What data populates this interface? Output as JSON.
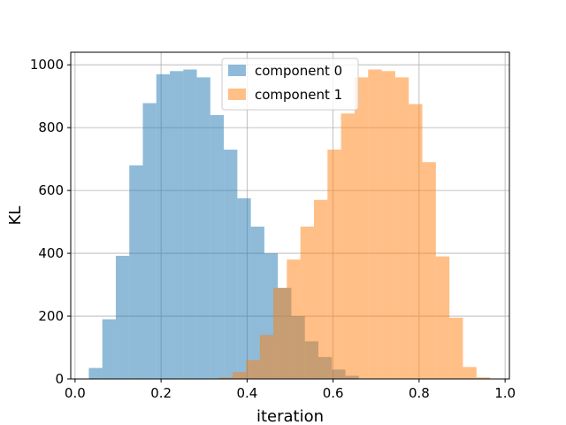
{
  "chart_data": {
    "type": "bar",
    "xlabel": "iteration",
    "ylabel": "KL",
    "xlim": [
      -0.01,
      1.01
    ],
    "ylim": [
      0,
      1040
    ],
    "xticks": [
      "0.0",
      "0.2",
      "0.4",
      "0.6",
      "0.8",
      "1.0"
    ],
    "xtick_values": [
      0.0,
      0.2,
      0.4,
      0.6,
      0.8,
      1.0
    ],
    "yticks": [
      "0",
      "200",
      "400",
      "600",
      "800",
      "1000"
    ],
    "ytick_values": [
      0,
      200,
      400,
      600,
      800,
      1000
    ],
    "grid": true,
    "legend_position": "top-center",
    "series": [
      {
        "name": "component 0",
        "color": "#1f77b4",
        "opacity": 0.5,
        "bin_edges": [
          0.032,
          0.0634,
          0.0948,
          0.1262,
          0.1576,
          0.189,
          0.2204,
          0.2518,
          0.2832,
          0.3146,
          0.346,
          0.3774,
          0.4088,
          0.4402,
          0.4716,
          0.503,
          0.5344,
          0.5658,
          0.5972,
          0.6286,
          0.66
        ],
        "values": [
          35,
          190,
          392,
          680,
          878,
          970,
          980,
          985,
          960,
          840,
          730,
          575,
          485,
          400,
          290,
          200,
          120,
          70,
          30,
          10
        ]
      },
      {
        "name": "component 1",
        "color": "#ff7f0e",
        "opacity": 0.5,
        "bin_edges": [
          0.335,
          0.3665,
          0.398,
          0.4295,
          0.461,
          0.4925,
          0.524,
          0.5555,
          0.587,
          0.6185,
          0.65,
          0.6815,
          0.713,
          0.7445,
          0.776,
          0.8075,
          0.839,
          0.8705,
          0.902,
          0.9335,
          0.965
        ],
        "values": [
          5,
          22,
          60,
          140,
          290,
          380,
          485,
          570,
          730,
          845,
          960,
          985,
          980,
          960,
          875,
          690,
          390,
          195,
          38,
          5
        ]
      }
    ]
  }
}
